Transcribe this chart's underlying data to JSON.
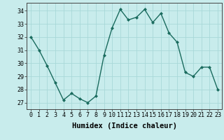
{
  "x": [
    0,
    1,
    2,
    3,
    4,
    5,
    6,
    7,
    8,
    9,
    10,
    11,
    12,
    13,
    14,
    15,
    16,
    17,
    18,
    19,
    20,
    21,
    22,
    23
  ],
  "y": [
    32,
    31,
    29.8,
    28.5,
    27.2,
    27.7,
    27.3,
    27.0,
    27.5,
    30.6,
    32.7,
    34.1,
    33.3,
    33.5,
    34.1,
    33.1,
    33.8,
    32.3,
    31.6,
    29.3,
    29.0,
    29.7,
    29.7,
    28.0
  ],
  "line_color": "#1a6b5e",
  "marker": "D",
  "marker_size": 2.0,
  "bg_color": "#c8ecec",
  "grid_color": "#a8d8d8",
  "xlabel": "Humidex (Indice chaleur)",
  "ylim": [
    26.5,
    34.6
  ],
  "xlim": [
    -0.5,
    23.5
  ],
  "yticks": [
    27,
    28,
    29,
    30,
    31,
    32,
    33,
    34
  ],
  "xticks": [
    0,
    1,
    2,
    3,
    4,
    5,
    6,
    7,
    8,
    9,
    10,
    11,
    12,
    13,
    14,
    15,
    16,
    17,
    18,
    19,
    20,
    21,
    22,
    23
  ],
  "xlabel_fontsize": 7.5,
  "tick_fontsize": 6.0,
  "spine_color": "#444444",
  "linewidth": 1.0
}
